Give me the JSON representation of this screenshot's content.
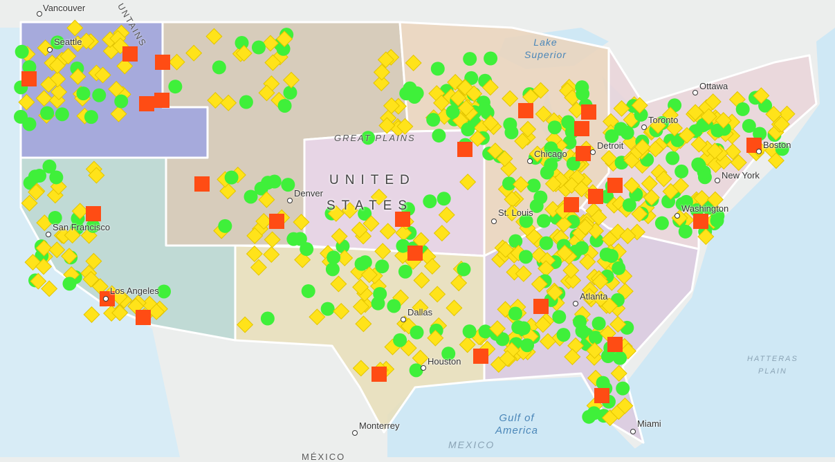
{
  "map": {
    "colors": {
      "water": "#cfe8f5",
      "land": "#eceeed",
      "pacific_northwest": "#9a9ed8",
      "mountain": "#d3c6b2",
      "plains": "#e6d0e3",
      "california": "#b8d6d0",
      "southwest": "#e9deb9",
      "midwest": "#ebd3bb",
      "southeast": "#d9c8de",
      "northeast": "#ead3d8",
      "marker_circle": "#3ff03a",
      "marker_diamond": "#ffe31a",
      "marker_square": "#ff4c14"
    },
    "marker_shapes": [
      "circle",
      "diamond",
      "square"
    ],
    "cities": [
      {
        "name": "Vancouver"
      },
      {
        "name": "Seattle"
      },
      {
        "name": "San Francisco"
      },
      {
        "name": "Los Angeles"
      },
      {
        "name": "Denver"
      },
      {
        "name": "Dallas"
      },
      {
        "name": "Houston"
      },
      {
        "name": "St. Louis"
      },
      {
        "name": "Chicago"
      },
      {
        "name": "Detroit"
      },
      {
        "name": "Toronto"
      },
      {
        "name": "Ottawa"
      },
      {
        "name": "Boston"
      },
      {
        "name": "New York"
      },
      {
        "name": "Washington"
      },
      {
        "name": "Atlanta"
      },
      {
        "name": "Miami"
      },
      {
        "name": "Monterrey"
      }
    ],
    "water_labels": {
      "lake_superior": "Lake\nSuperior",
      "gulf": "Gulf of\nAmerica"
    },
    "region_labels": {
      "great_plains": "GREAT PLAINS",
      "mountains": "UNTAINS",
      "united": "UNITED",
      "states": "STATES",
      "hatteras": "HATTERAS\nPLAIN",
      "mexico_basin": "MEXICO",
      "mexico": "MÉXICO"
    }
  }
}
